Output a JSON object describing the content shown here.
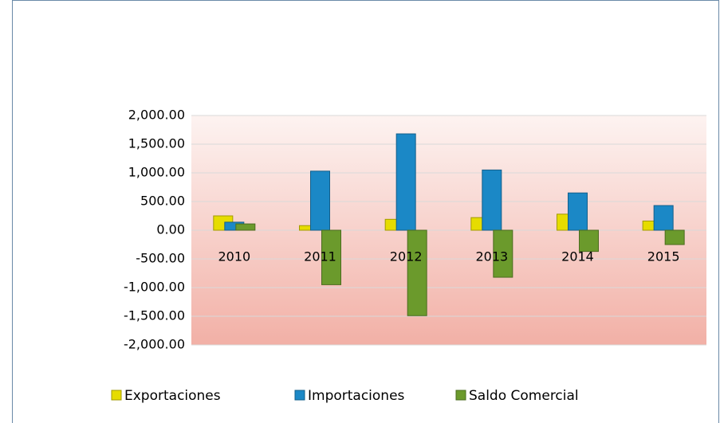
{
  "chart_data": {
    "type": "bar",
    "categories": [
      "2010",
      "2011",
      "2012",
      "2013",
      "2014",
      "2015"
    ],
    "series": [
      {
        "name": "Exportaciones",
        "color": "#e6dc00",
        "values": [
          250,
          80,
          190,
          220,
          280,
          160
        ]
      },
      {
        "name": "Importaciones",
        "color": "#1b88c6",
        "values": [
          140,
          1030,
          1680,
          1050,
          650,
          430
        ]
      },
      {
        "name": "Saldo Comercial",
        "color": "#6b9a2c",
        "values": [
          110,
          -950,
          -1490,
          -820,
          -370,
          -250
        ]
      }
    ],
    "ylim": [
      -2000,
      2000
    ],
    "yticks": [
      {
        "value": -2000,
        "label": "-2,000.00"
      },
      {
        "value": -1500,
        "label": "-1,500.00"
      },
      {
        "value": -1000,
        "label": "-1,000.00"
      },
      {
        "value": -500,
        "label": "-500.00"
      },
      {
        "value": 0,
        "label": "0.00"
      },
      {
        "value": 500,
        "label": "500.00"
      },
      {
        "value": 1000,
        "label": "1,000.00"
      },
      {
        "value": 1500,
        "label": "1,500.00"
      },
      {
        "value": 2000,
        "label": "2,000.00"
      }
    ],
    "grid": true,
    "legend": "bottom"
  }
}
